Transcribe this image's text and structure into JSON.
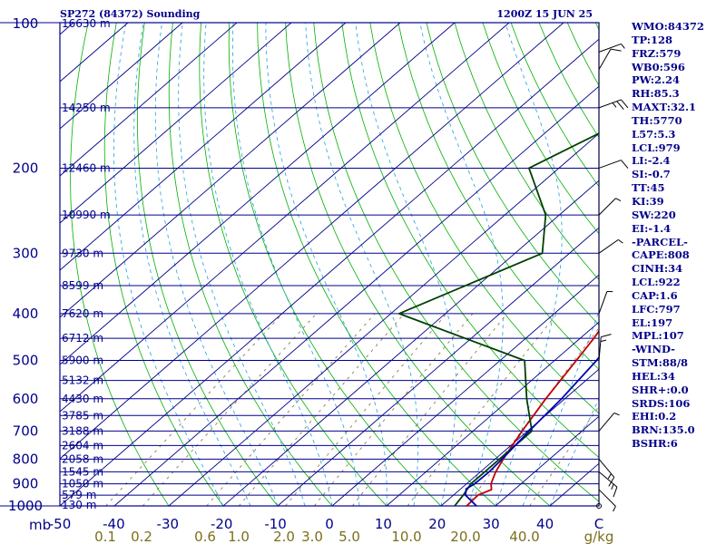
{
  "header": {
    "station_title": "SP272 (84372) Sounding",
    "valid_time": "1200Z 15 JUN 25"
  },
  "chart_data": {
    "type": "line",
    "title": "SP272 (84372) Sounding",
    "subtitle": "1200Z 15 JUN 25",
    "x_axis": {
      "unit": "C",
      "range": [
        -50,
        50
      ],
      "ticks": [
        "-50",
        "-40",
        "-30",
        "-20",
        "-10",
        "0",
        "10",
        "20",
        "30",
        "40",
        "C"
      ]
    },
    "y_axis": {
      "unit": "mb",
      "scale": "log",
      "range": [
        100,
        1000
      ],
      "ticks": [
        "100",
        "200",
        "300",
        "400",
        "500",
        "600",
        "700",
        "800",
        "900",
        "1000"
      ]
    },
    "height_labels": [
      {
        "p": 100,
        "label": "16630 m"
      },
      {
        "p": 150,
        "label": "14250 m"
      },
      {
        "p": 200,
        "label": "12460 m"
      },
      {
        "p": 250,
        "label": "10990 m"
      },
      {
        "p": 300,
        "label": "9730 m"
      },
      {
        "p": 350,
        "label": "8599 m"
      },
      {
        "p": 400,
        "label": "7620 m"
      },
      {
        "p": 450,
        "label": "6712 m"
      },
      {
        "p": 500,
        "label": "5900 m"
      },
      {
        "p": 550,
        "label": "5132 m"
      },
      {
        "p": 600,
        "label": "4430 m"
      },
      {
        "p": 650,
        "label": "3785 m"
      },
      {
        "p": 700,
        "label": "3188 m"
      },
      {
        "p": 750,
        "label": "2604 m"
      },
      {
        "p": 800,
        "label": "2058 m"
      },
      {
        "p": 850,
        "label": "1545 m"
      },
      {
        "p": 900,
        "label": "1050 m"
      },
      {
        "p": 950,
        "label": "579 m"
      },
      {
        "p": 1000,
        "label": "130 m"
      }
    ],
    "mixing_ratio_labels": [
      "0.1",
      "0.2",
      "0.6",
      "1.0",
      "2.0",
      "3.0",
      "5.0",
      "10.0",
      "20.0",
      "40.0",
      "g/kg"
    ],
    "series": [
      {
        "name": "Temperature",
        "color": "#c00000",
        "points": [
          [
            1000,
            24.7
          ],
          [
            950,
            24.5
          ],
          [
            925,
            25.8
          ],
          [
            900,
            24.5
          ],
          [
            850,
            22.8
          ],
          [
            800,
            21.5
          ],
          [
            750,
            20.3
          ],
          [
            700,
            19.0
          ],
          [
            650,
            17.8
          ],
          [
            600,
            16.5
          ],
          [
            550,
            15.3
          ],
          [
            500,
            14.0
          ],
          [
            450,
            12.5
          ],
          [
            400,
            10.5
          ],
          [
            350,
            5.5
          ],
          [
            300,
            -0.5
          ],
          [
            250,
            -6.5
          ],
          [
            200,
            -12.5
          ],
          [
            150,
            -18.5
          ],
          [
            125,
            -21.5
          ],
          [
            115,
            -19.0
          ],
          [
            100,
            -12.5
          ]
        ]
      },
      {
        "name": "Dewpoint",
        "color": "#004000",
        "points": [
          [
            1000,
            22.5
          ],
          [
            950,
            21.8
          ],
          [
            900,
            20.8
          ],
          [
            850,
            20.8
          ],
          [
            800,
            20.8
          ],
          [
            700,
            20.8
          ],
          [
            600,
            13.0
          ],
          [
            500,
            4.5
          ],
          [
            400,
            -28.5
          ],
          [
            300,
            -15.0
          ],
          [
            250,
            -22.5
          ],
          [
            200,
            -35.5
          ],
          [
            150,
            -26.0
          ],
          [
            125,
            -30.0
          ],
          [
            115,
            -28.0
          ],
          [
            100,
            -17.0
          ]
        ]
      },
      {
        "name": "Parcel",
        "color": "#0000b0",
        "points": [
          [
            1000,
            26.5
          ],
          [
            950,
            22.2
          ],
          [
            922,
            21.0
          ],
          [
            900,
            21.5
          ],
          [
            850,
            21.6
          ],
          [
            800,
            21.3
          ],
          [
            700,
            20.3
          ],
          [
            600,
            19.4
          ],
          [
            500,
            17.7
          ],
          [
            450,
            16.2
          ],
          [
            400,
            13.6
          ],
          [
            350,
            10.3
          ],
          [
            300,
            6.0
          ],
          [
            250,
            -0.5
          ],
          [
            200,
            -12.0
          ],
          [
            150,
            -25.0
          ],
          [
            100,
            -36.0
          ]
        ]
      }
    ],
    "winds": [
      {
        "p": 1000,
        "dir": 0,
        "spd": 0
      },
      {
        "p": 925,
        "dir": 135,
        "spd": 5
      },
      {
        "p": 850,
        "dir": 130,
        "spd": 15
      },
      {
        "p": 800,
        "dir": 140,
        "spd": 15
      },
      {
        "p": 700,
        "dir": 40,
        "spd": 5
      },
      {
        "p": 500,
        "dir": 5,
        "spd": 15
      },
      {
        "p": 400,
        "dir": 20,
        "spd": 5
      },
      {
        "p": 300,
        "dir": 55,
        "spd": 5
      },
      {
        "p": 250,
        "dir": 45,
        "spd": 5
      },
      {
        "p": 200,
        "dir": 70,
        "spd": 10
      },
      {
        "p": 150,
        "dir": 70,
        "spd": 25
      },
      {
        "p": 125,
        "dir": 30,
        "spd": 10
      },
      {
        "p": 115,
        "dir": 70,
        "spd": 5
      }
    ],
    "grid": true,
    "colors": {
      "isobars": "#00008b",
      "isotherms": "#00008b",
      "dry_adiabats": "#00b000",
      "moist_adiabats": "#20a0e0",
      "mixing_ratio": "#8b7d4b",
      "axis_text": "#00008b",
      "mixing_ratio_text": "#7a6f1a"
    }
  },
  "indices": [
    "WMO:84372",
    "TP:128",
    "FRZ:579",
    "WB0:596",
    "PW:2.24",
    "RH:85.3",
    "MAXT:32.1",
    "TH:5770",
    "L57:5.3",
    "LCL:979",
    "LI:-2.4",
    "SI:-0.7",
    "TT:45",
    "KI:39",
    "SW:220",
    "EI:-1.4",
    "-PARCEL-",
    "CAPE:808",
    "CINH:34",
    "LCL:922",
    "CAP:1.6",
    "LFC:797",
    "EL:197",
    "MPL:107",
    "-WIND-",
    "STM:88/8",
    "HEL:34",
    "SHR+:0.0",
    "SRDS:106",
    "EHI:0.2",
    "BRN:135.0",
    "BSHR:6"
  ]
}
